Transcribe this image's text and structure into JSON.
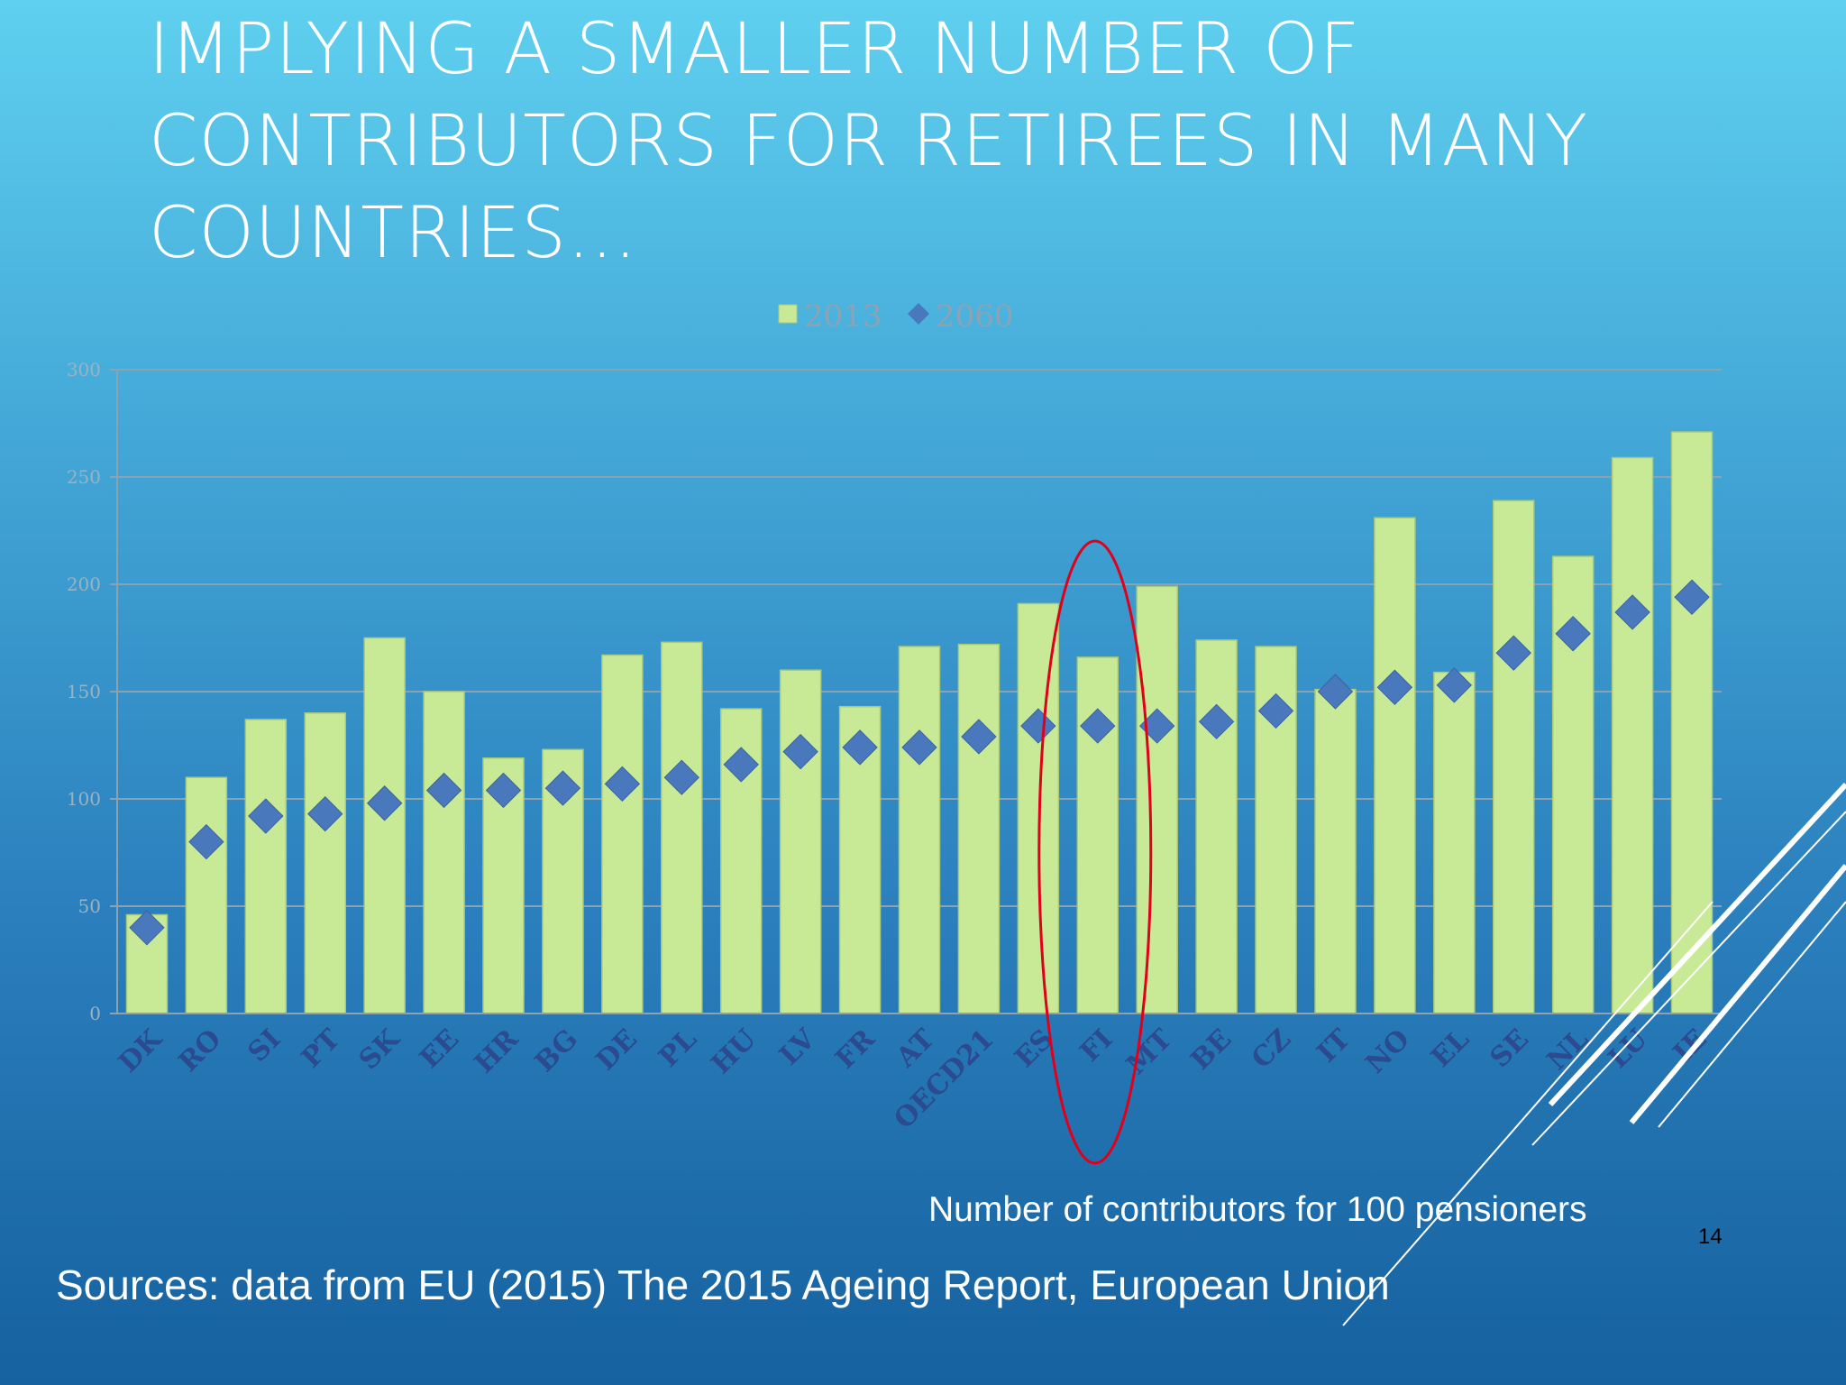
{
  "slide": {
    "title_lines": [
      "IMPLYING A SMALLER NUMBER OF",
      "CONTRIBUTORS FOR RETIREES IN MANY",
      "COUNTRIES…"
    ],
    "units_note": "Number of contributors for 100 pensioners",
    "page_number": "14",
    "sources": "Sources: data from EU (2015) The 2015 Ageing Report, European Union"
  },
  "colors": {
    "bar_fill": "#c8ea96",
    "bar_stroke": "#a9c97c",
    "marker_fill": "#4a78bd",
    "highlight_ellipse": "#e0001b",
    "gridline": "#8aa3b3"
  },
  "chart_data": {
    "type": "bar",
    "ylim": [
      0,
      300
    ],
    "yticks": [
      "0",
      "50",
      "100",
      "150",
      "200",
      "250",
      "300"
    ],
    "grid": true,
    "legend_position": "top-center",
    "categories": [
      "DK",
      "RO",
      "SI",
      "PT",
      "SK",
      "EE",
      "HR",
      "BG",
      "DE",
      "PL",
      "HU",
      "LV",
      "FR",
      "AT",
      "OECD21",
      "ES",
      "FI",
      "MT",
      "BE",
      "CZ",
      "IT",
      "NO",
      "EL",
      "SE",
      "NL",
      "LU",
      "IE"
    ],
    "series": [
      {
        "name": "2013",
        "kind": "bar",
        "values": [
          46,
          110,
          137,
          140,
          175,
          150,
          119,
          123,
          167,
          173,
          142,
          160,
          143,
          171,
          172,
          191,
          166,
          199,
          174,
          171,
          151,
          231,
          159,
          239,
          213,
          259,
          271
        ]
      },
      {
        "name": "2060",
        "kind": "diamond-marker",
        "values": [
          40,
          80,
          92,
          93,
          98,
          104,
          104,
          105,
          107,
          110,
          116,
          122,
          124,
          124,
          129,
          134,
          134,
          134,
          136,
          141,
          150,
          152,
          153,
          168,
          177,
          187,
          194
        ]
      }
    ],
    "highlighted_category": "FI"
  }
}
